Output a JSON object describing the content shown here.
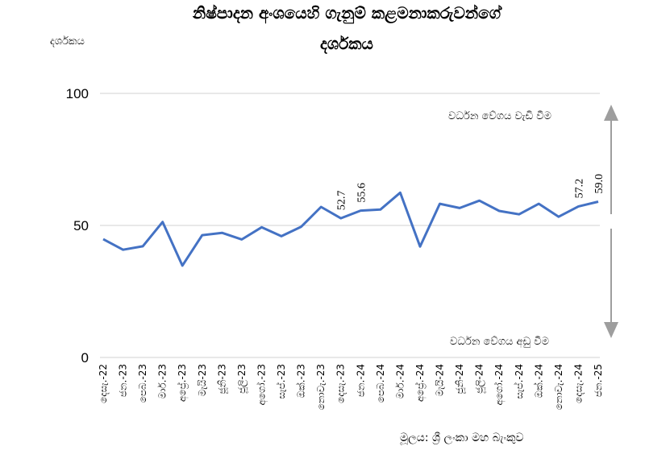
{
  "chart_data": {
    "type": "line",
    "title_line1": "නිෂ්පාදන අංශයෙහි ගැනුම් කළමනාකරුවන්ගේ",
    "title_line2": "දර්ශකය",
    "ylabel": "දර්ශකය",
    "ylim": [
      0,
      100
    ],
    "yticks": [
      "0",
      "50",
      "100"
    ],
    "grid": "horizontal",
    "categories": [
      "දෙසැ.-22",
      "ජන.-23",
      "පෙබ.-23",
      "මාර්.-23",
      "අප්‍රේ.-23",
      "මැයි-23",
      "ජූනි-23",
      "ජූලි-23",
      "අගෝ.-23",
      "සැප්.-23",
      "ඔක්.-23",
      "නොවැ.-23",
      "දෙසැ.-23",
      "ජන.-24",
      "පෙබ.-24",
      "මාර්.-24",
      "අප්‍රේ.-24",
      "මැයි-24",
      "ජූනි-24",
      "ජූලි-24",
      "අගෝ.-24",
      "සැප්.-24",
      "ඔක්.-24",
      "නොවැ.-24",
      "දෙසැ.-24",
      "ජන.-25"
    ],
    "values": [
      44.8,
      40.8,
      42.1,
      51.3,
      34.8,
      46.3,
      47.2,
      44.7,
      49.3,
      45.9,
      49.5,
      57.0,
      52.7,
      55.6,
      56.0,
      62.4,
      42.0,
      58.2,
      56.6,
      59.4,
      55.5,
      54.2,
      58.2,
      53.3,
      57.2,
      59.0
    ],
    "data_labels": [
      {
        "index": 12,
        "text": "52.7"
      },
      {
        "index": 13,
        "text": "55.6"
      },
      {
        "index": 24,
        "text": "57.2"
      },
      {
        "index": 25,
        "text": "59.0"
      }
    ],
    "annotations": {
      "up": "වර්ධන වේගය වැඩි වීම",
      "down": "වර්ධන වේගය අඩු වීම"
    },
    "source": "මූලය: ශ්‍රී ලංකා මහ බැංකුව",
    "line_color": "#4472c4",
    "arrow_color": "#9e9e9e"
  }
}
